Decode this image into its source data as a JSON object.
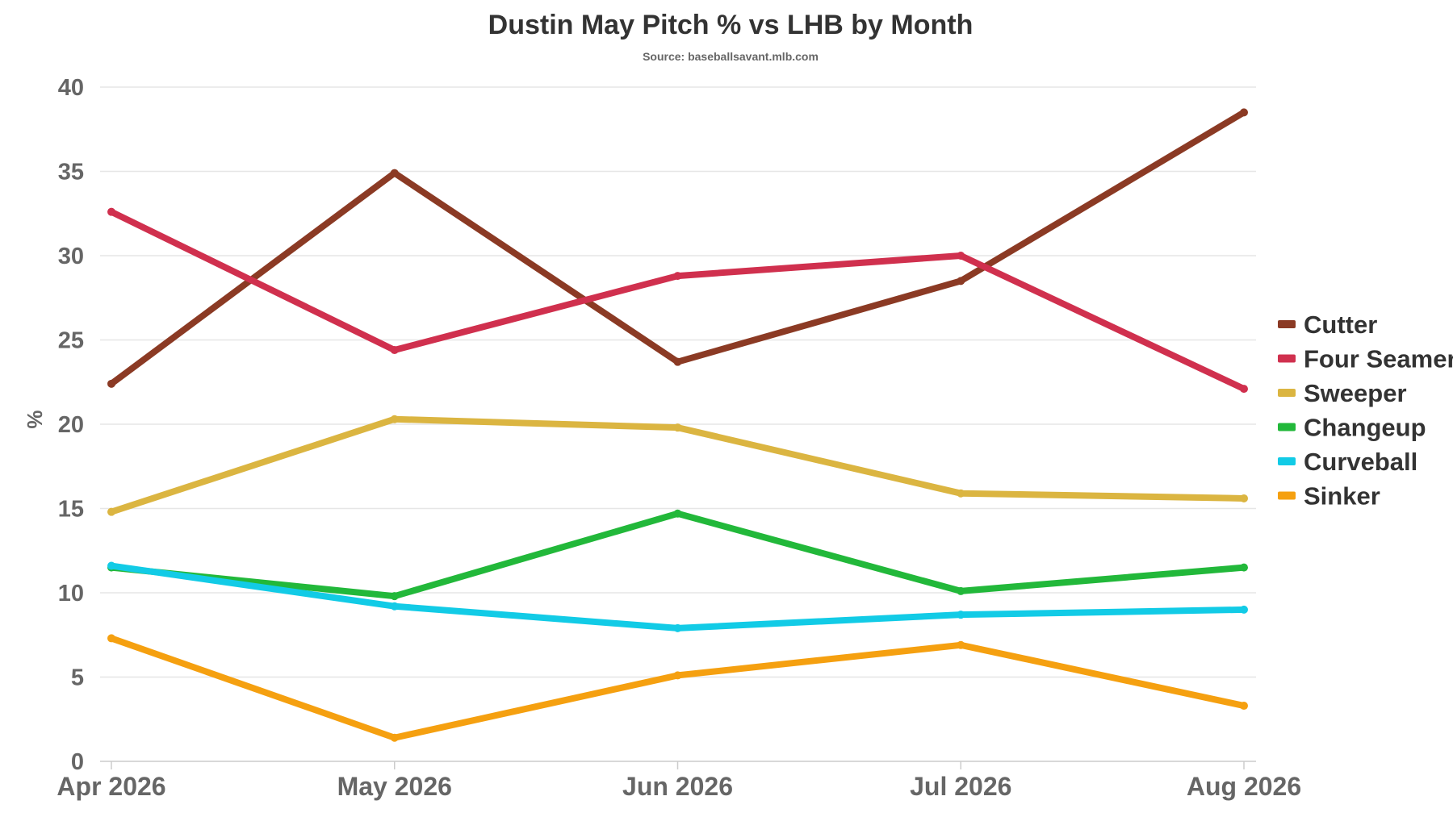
{
  "chart_data": {
    "type": "line",
    "title": "Dustin May Pitch % vs LHB by Month",
    "subtitle": "Source: baseballsavant.mlb.com",
    "xlabel": "",
    "ylabel": "%",
    "categories": [
      "Apr 2026",
      "May 2026",
      "Jun 2026",
      "Jul 2026",
      "Aug 2026"
    ],
    "ylim": [
      0,
      40
    ],
    "yticks": [
      0,
      5,
      10,
      15,
      20,
      25,
      30,
      35,
      40
    ],
    "grid": true,
    "legend_position": "right",
    "series": [
      {
        "name": "Cutter",
        "color": "#8b3a24",
        "values": [
          22.4,
          34.9,
          23.7,
          28.5,
          38.5
        ]
      },
      {
        "name": "Four Seamer",
        "color": "#d0304e",
        "values": [
          32.6,
          24.4,
          28.8,
          30.0,
          22.1
        ]
      },
      {
        "name": "Sweeper",
        "color": "#dbb541",
        "values": [
          14.8,
          20.3,
          19.8,
          15.9,
          15.6
        ]
      },
      {
        "name": "Changeup",
        "color": "#22b83a",
        "values": [
          11.5,
          9.8,
          14.7,
          10.1,
          11.5
        ]
      },
      {
        "name": "Curveball",
        "color": "#12cbe6",
        "values": [
          11.6,
          9.2,
          7.9,
          8.7,
          9.0
        ]
      },
      {
        "name": "Sinker",
        "color": "#f5a010",
        "values": [
          7.3,
          1.4,
          5.1,
          6.9,
          3.3
        ]
      }
    ]
  }
}
